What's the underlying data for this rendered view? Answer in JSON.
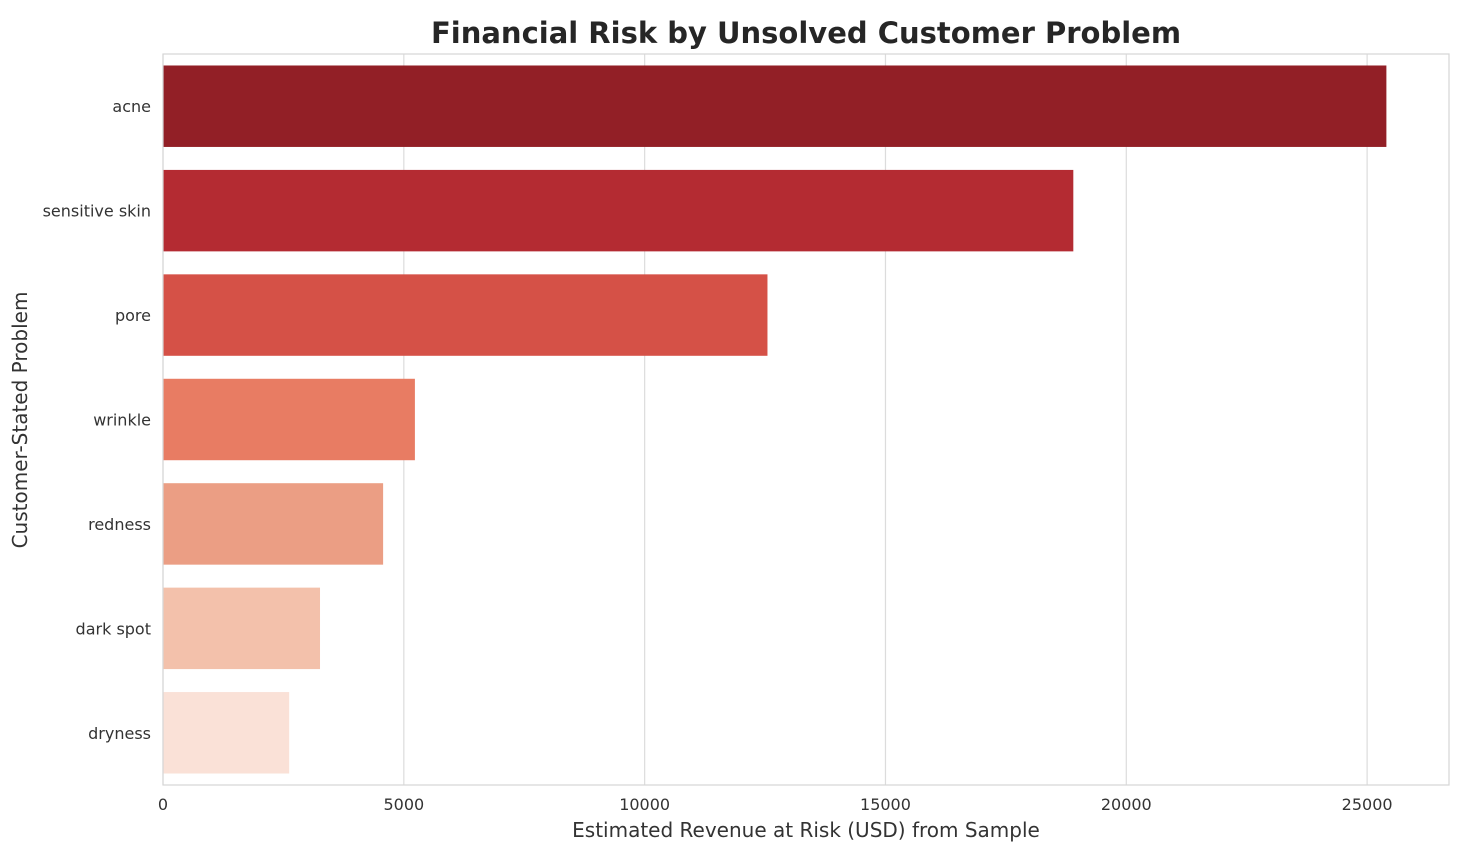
{
  "chart_data": {
    "type": "bar",
    "orientation": "horizontal",
    "title": "Financial Risk by Unsolved Customer Problem",
    "xlabel": "Estimated Revenue at Risk (USD) from Sample",
    "ylabel": "Customer-Stated Problem",
    "categories": [
      "acne",
      "sensitive skin",
      "pore",
      "wrinkle",
      "redness",
      "dark spot",
      "dryness"
    ],
    "values": [
      25400,
      18900,
      12550,
      5230,
      4570,
      3260,
      2620
    ],
    "colors": [
      "#921f26",
      "#b42b32",
      "#d55147",
      "#e87c63",
      "#eb9e84",
      "#f3c1ab",
      "#fae1d7"
    ],
    "xlim": [
      0,
      26700
    ],
    "xticks": [
      0,
      5000,
      10000,
      15000,
      20000,
      25000
    ],
    "grid": true
  }
}
